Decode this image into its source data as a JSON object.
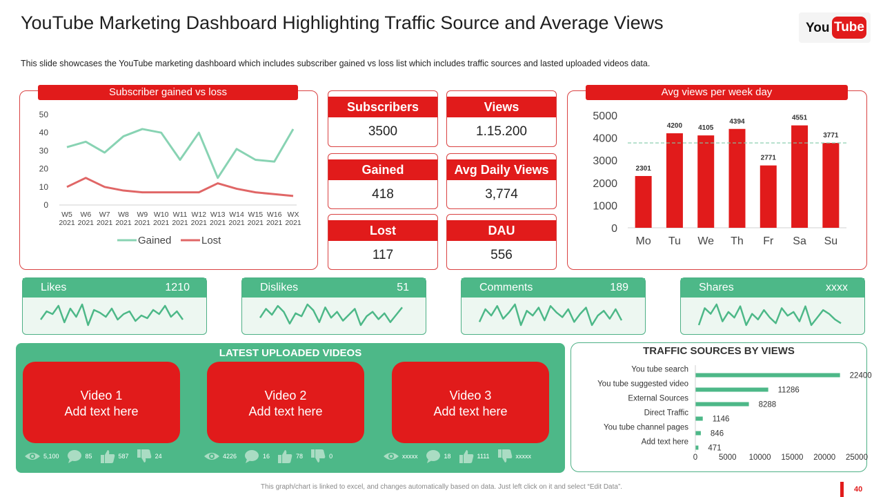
{
  "header": {
    "title": "YouTube Marketing Dashboard Highlighting Traffic Source and Average Views",
    "subtitle": "This slide showcases the YouTube marketing dashboard which includes subscriber gained vs loss list which includes traffic sources and lasted uploaded videos data.",
    "logo_you": "You",
    "logo_tube": "Tube"
  },
  "colors": {
    "red": "#e11b1b",
    "green": "#4db888",
    "gained_line": "#88d3b3",
    "lost_line": "#e06666"
  },
  "subscriber_panel": {
    "title": "Subscriber gained vs loss"
  },
  "kpis": [
    {
      "label": "Subscribers",
      "value": "3500"
    },
    {
      "label": "Views",
      "value": "1.15.200"
    },
    {
      "label": "Gained",
      "value": "418"
    },
    {
      "label": "Avg Daily Views",
      "value": "3,774"
    },
    {
      "label": "Lost",
      "value": "117"
    },
    {
      "label": "DAU",
      "value": "556"
    }
  ],
  "avg_panel": {
    "title": "Avg views per week day"
  },
  "sparks": [
    {
      "label": "Likes",
      "value": "1210",
      "values": [
        20,
        26,
        24,
        30,
        18,
        28,
        22,
        31,
        16,
        27,
        25,
        22,
        28,
        20,
        24,
        26,
        19,
        23,
        21,
        27,
        24,
        30,
        22,
        26,
        20
      ]
    },
    {
      "label": "Dislikes",
      "value": "51",
      "values": [
        22,
        28,
        24,
        30,
        26,
        18,
        25,
        23,
        31,
        27,
        19,
        29,
        22,
        26,
        20,
        24,
        28,
        17,
        23,
        26,
        21,
        25,
        19,
        24,
        29
      ]
    },
    {
      "label": "Comments",
      "value": "189",
      "values": [
        20,
        28,
        24,
        30,
        22,
        26,
        31,
        18,
        27,
        24,
        29,
        21,
        30,
        26,
        23,
        28,
        20,
        25,
        29,
        18,
        24,
        27,
        22,
        28,
        21
      ]
    },
    {
      "label": "Shares",
      "value": "xxxx",
      "values": [
        20,
        29,
        26,
        31,
        22,
        27,
        24,
        30,
        20,
        26,
        23,
        28,
        24,
        21,
        29,
        25,
        27,
        22,
        30,
        20,
        24,
        28,
        26,
        23,
        21
      ]
    }
  ],
  "videos": {
    "title": "LATEST UPLOADED VIDEOS",
    "items": [
      {
        "name": "Video 1",
        "text": "Add text here",
        "views": "5,100",
        "comments": "85",
        "likes": "587",
        "dislikes": "24"
      },
      {
        "name": "Video 2",
        "text": "Add text here",
        "views": "4226",
        "comments": "16",
        "likes": "78",
        "dislikes": "0"
      },
      {
        "name": "Video 3",
        "text": "Add text here",
        "views": "xxxxx",
        "comments": "18",
        "likes": "1111",
        "dislikes": "xxxxx"
      }
    ]
  },
  "chart_data": [
    {
      "type": "line",
      "title": "Subscriber gained vs loss",
      "categories": [
        "W5 2021",
        "W6 2021",
        "W7 2021",
        "W8 2021",
        "W9 2021",
        "W10 2021",
        "W11 2021",
        "W12 2021",
        "W13 2021",
        "W14 2021",
        "W15 2021",
        "W16 2021",
        "WX 2021"
      ],
      "ylim": [
        0,
        50
      ],
      "yticks": [
        0,
        10,
        20,
        30,
        40,
        50
      ],
      "legend": "bottom",
      "series": [
        {
          "name": "Gained",
          "values": [
            32,
            35,
            29,
            38,
            42,
            40,
            25,
            40,
            15,
            31,
            25,
            24,
            42
          ]
        },
        {
          "name": "Lost",
          "values": [
            10,
            15,
            10,
            8,
            7,
            7,
            7,
            7,
            12,
            9,
            7,
            6,
            5
          ]
        }
      ]
    },
    {
      "type": "bar",
      "title": "Avg views per week day",
      "categories": [
        "Mo",
        "Tu",
        "We",
        "Th",
        "Fr",
        "Sa",
        "Su"
      ],
      "values": [
        2301,
        4200,
        4105,
        4394,
        2771,
        4551,
        3771
      ],
      "ylim": [
        0,
        5000
      ],
      "yticks": [
        0,
        1000,
        2000,
        3000,
        4000,
        5000
      ],
      "reference_line": 3771,
      "data_labels": [
        "2301",
        "4200",
        "4105",
        "4394",
        "2771",
        "4551",
        "3771"
      ]
    },
    {
      "type": "bar",
      "orientation": "horizontal",
      "title": "TRAFFIC SOURCES BY VIEWS",
      "categories": [
        "You tube search",
        "You tube suggested video",
        "External Sources",
        "Direct Traffic",
        "You tube channel pages",
        "Add text here"
      ],
      "values": [
        22400,
        11286,
        8288,
        1146,
        846,
        471
      ],
      "xlim": [
        0,
        25000
      ],
      "xticks": [
        0,
        5000,
        10000,
        15000,
        20000,
        25000
      ],
      "data_labels": [
        "22400",
        "11286",
        "8288",
        "1146",
        "846",
        "471"
      ]
    }
  ],
  "footer": {
    "note": "This graph/chart is linked to excel, and changes automatically based on data. Just left click on it and select “Edit Data”.",
    "page": "40"
  }
}
